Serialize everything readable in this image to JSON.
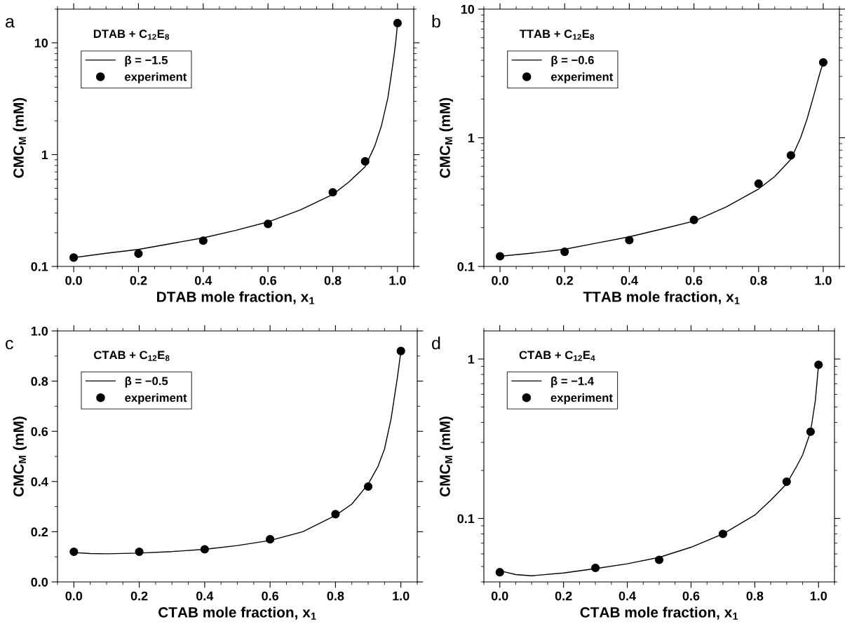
{
  "chart_data": [
    {
      "type": "line",
      "xlabel": "DTAB mole fraction, x$_{1}$",
      "ylabel": "CMC$_{M}$ (mM)",
      "annotations": [
        "a",
        "DTAB + C$_{12}$E$_{8}$"
      ],
      "log": "y",
      "legend": "top left",
      "grid": false,
      "xlim": [
        -0.05,
        1.05
      ],
      "ylim": [
        0.1,
        20
      ],
      "xticks": [
        {
          "value": 0,
          "label": "0.0"
        },
        {
          "value": 0.2,
          "label": "0.2"
        },
        {
          "value": 0.4,
          "label": "0.4"
        },
        {
          "value": 0.6,
          "label": "0.6"
        },
        {
          "value": 0.8,
          "label": "0.8"
        },
        {
          "value": 1,
          "label": "1.0"
        }
      ],
      "yticks": [
        0.1,
        1,
        10
      ],
      "series": [
        {
          "name": "β = −1.5",
          "color": "#000000",
          "line_style": "solid",
          "x": [
            0,
            0.1,
            0.2,
            0.3,
            0.4,
            0.5,
            0.6,
            0.7,
            0.8,
            0.85,
            0.9,
            0.93,
            0.95,
            0.97,
            0.98,
            0.99,
            0.995,
            1.0
          ],
          "values": [
            0.12,
            0.131,
            0.142,
            0.16,
            0.18,
            0.21,
            0.25,
            0.32,
            0.44,
            0.57,
            0.78,
            1.2,
            1.8,
            3.2,
            5.0,
            8.0,
            10.5,
            15.0
          ]
        },
        {
          "type": "scatter",
          "name": "experiment",
          "color": "#000000",
          "marker": "circle",
          "x": [
            0,
            0.2,
            0.4,
            0.6,
            0.8,
            0.9,
            1.0
          ],
          "values": [
            0.12,
            0.13,
            0.17,
            0.24,
            0.46,
            0.87,
            15.0
          ]
        }
      ]
    },
    {
      "type": "line",
      "xlabel": "TTAB mole fraction, x$_{1}$",
      "ylabel": "CMC$_{M}$ (mM)",
      "annotations": [
        "b",
        "TTAB + C$_{12}$E$_{8}$"
      ],
      "log": "y",
      "legend": "top left",
      "grid": false,
      "xlim": [
        -0.05,
        1.05
      ],
      "ylim": [
        0.1,
        10
      ],
      "xticks": [
        {
          "value": 0,
          "label": "0.0"
        },
        {
          "value": 0.2,
          "label": "0.2"
        },
        {
          "value": 0.4,
          "label": "0.4"
        },
        {
          "value": 0.6,
          "label": "0.6"
        },
        {
          "value": 0.8,
          "label": "0.8"
        },
        {
          "value": 1,
          "label": "1.0"
        }
      ],
      "yticks": [
        0.1,
        1,
        10
      ],
      "series": [
        {
          "name": "β = −0.6",
          "color": "#000000",
          "line_style": "solid",
          "x": [
            0,
            0.1,
            0.2,
            0.3,
            0.4,
            0.5,
            0.6,
            0.7,
            0.8,
            0.85,
            0.9,
            0.93,
            0.95,
            0.97,
            0.98,
            0.99,
            1.0
          ],
          "values": [
            0.12,
            0.127,
            0.136,
            0.152,
            0.17,
            0.195,
            0.225,
            0.29,
            0.4,
            0.5,
            0.68,
            1.0,
            1.4,
            2.1,
            2.6,
            3.2,
            3.85
          ]
        },
        {
          "type": "scatter",
          "name": "experiment",
          "color": "#000000",
          "marker": "circle",
          "x": [
            0,
            0.2,
            0.4,
            0.6,
            0.8,
            0.9,
            1.0
          ],
          "values": [
            0.12,
            0.13,
            0.16,
            0.23,
            0.44,
            0.73,
            3.85
          ]
        }
      ]
    },
    {
      "type": "line",
      "xlabel": "CTAB mole fraction, x$_{1}$",
      "ylabel": "CMC$_{M}$ (mM)",
      "annotations": [
        "c",
        "CTAB + C$_{12}$E$_{8}$"
      ],
      "legend": "top left",
      "grid": false,
      "xlim": [
        -0.05,
        1.05
      ],
      "ylim": [
        0,
        1
      ],
      "xticks": [
        {
          "value": 0,
          "label": "0.0"
        },
        {
          "value": 0.2,
          "label": "0.2"
        },
        {
          "value": 0.4,
          "label": "0.4"
        },
        {
          "value": 0.6,
          "label": "0.6"
        },
        {
          "value": 0.8,
          "label": "0.8"
        },
        {
          "value": 1,
          "label": "1.0"
        }
      ],
      "yticks": [
        {
          "value": 0,
          "label": "0.0"
        },
        {
          "value": 0.2,
          "label": "0.2"
        },
        {
          "value": 0.4,
          "label": "0.4"
        },
        {
          "value": 0.6,
          "label": "0.6"
        },
        {
          "value": 0.8,
          "label": "0.8"
        },
        {
          "value": 1,
          "label": "1.0"
        }
      ],
      "series": [
        {
          "name": "β = −0.5",
          "color": "#000000",
          "line_style": "solid",
          "x": [
            0,
            0.05,
            0.1,
            0.2,
            0.3,
            0.4,
            0.5,
            0.6,
            0.7,
            0.8,
            0.85,
            0.9,
            0.93,
            0.95,
            0.97,
            0.99,
            1.0
          ],
          "values": [
            0.117,
            0.113,
            0.112,
            0.115,
            0.121,
            0.13,
            0.145,
            0.165,
            0.2,
            0.265,
            0.31,
            0.39,
            0.46,
            0.53,
            0.65,
            0.82,
            0.92
          ]
        },
        {
          "type": "scatter",
          "name": "experiment",
          "color": "#000000",
          "marker": "circle",
          "x": [
            0,
            0.2,
            0.4,
            0.6,
            0.8,
            0.9,
            1.0
          ],
          "values": [
            0.12,
            0.12,
            0.13,
            0.17,
            0.27,
            0.38,
            0.92
          ]
        }
      ]
    },
    {
      "type": "line",
      "xlabel": "CTAB mole fraction, x$_{1}$",
      "ylabel": "CMC$_{M}$ (mM)",
      "annotations": [
        "d",
        "CTAB + C$_{12}$E$_{4}$"
      ],
      "log": "y",
      "legend": "top left",
      "grid": false,
      "xlim": [
        -0.05,
        1.05
      ],
      "ylim": [
        0.04,
        1.5
      ],
      "xticks": [
        {
          "value": 0,
          "label": "0.0"
        },
        {
          "value": 0.2,
          "label": "0.2"
        },
        {
          "value": 0.4,
          "label": "0.4"
        },
        {
          "value": 0.6,
          "label": "0.6"
        },
        {
          "value": 0.8,
          "label": "0.8"
        },
        {
          "value": 1,
          "label": "1.0"
        }
      ],
      "yticks": [
        0.1,
        1
      ],
      "series": [
        {
          "name": "β = −1.4",
          "color": "#000000",
          "line_style": "solid",
          "x": [
            0,
            0.05,
            0.1,
            0.2,
            0.3,
            0.4,
            0.5,
            0.6,
            0.7,
            0.8,
            0.85,
            0.9,
            0.93,
            0.95,
            0.975,
            0.99,
            1.0
          ],
          "values": [
            0.047,
            0.0445,
            0.0437,
            0.0455,
            0.0485,
            0.052,
            0.057,
            0.066,
            0.08,
            0.105,
            0.13,
            0.165,
            0.21,
            0.25,
            0.35,
            0.55,
            0.92
          ]
        },
        {
          "type": "scatter",
          "name": "experiment",
          "color": "#000000",
          "marker": "circle",
          "x": [
            0,
            0.3,
            0.5,
            0.7,
            0.9,
            0.975,
            1.0
          ],
          "values": [
            0.046,
            0.049,
            0.055,
            0.08,
            0.17,
            0.35,
            0.92
          ]
        }
      ]
    }
  ]
}
